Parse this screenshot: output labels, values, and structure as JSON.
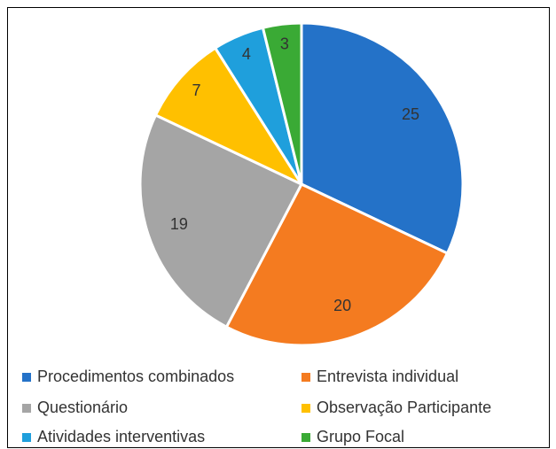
{
  "chart_data": {
    "type": "pie",
    "categories": [
      "Procedimentos combinados",
      "Entrevista individual",
      "Questionário",
      "Observação Participante",
      "Atividades interventivas",
      "Grupo Focal"
    ],
    "values": [
      25,
      20,
      19,
      7,
      4,
      3
    ],
    "colors": [
      "#2472c8",
      "#f47b20",
      "#a5a5a5",
      "#ffc000",
      "#1f9fdc",
      "#3aaa35"
    ],
    "legend": "bottom"
  }
}
